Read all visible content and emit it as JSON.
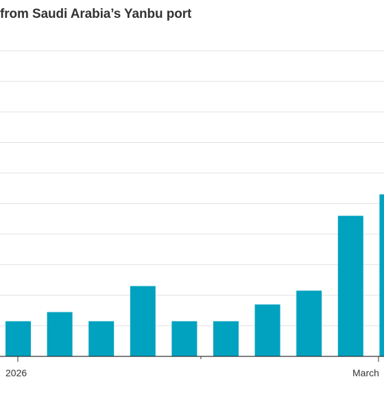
{
  "chart_data": {
    "type": "bar",
    "title": "from Saudi Arabia’s Yanbu port",
    "xlabel": "",
    "ylabel": "",
    "categories": [
      "",
      "",
      "",
      "",
      "",
      "",
      "",
      "",
      "",
      ""
    ],
    "values": [
      1.15,
      1.45,
      1.15,
      2.3,
      1.15,
      1.15,
      1.7,
      2.15,
      4.6,
      5.3
    ],
    "ylim": [
      0,
      10
    ],
    "grid": true,
    "legend": "none",
    "x_tick_labels": [
      "2026",
      "March"
    ],
    "bar_color": "#00a2bf",
    "grid_color": "#e2e2e2",
    "axis_color": "#333333"
  }
}
